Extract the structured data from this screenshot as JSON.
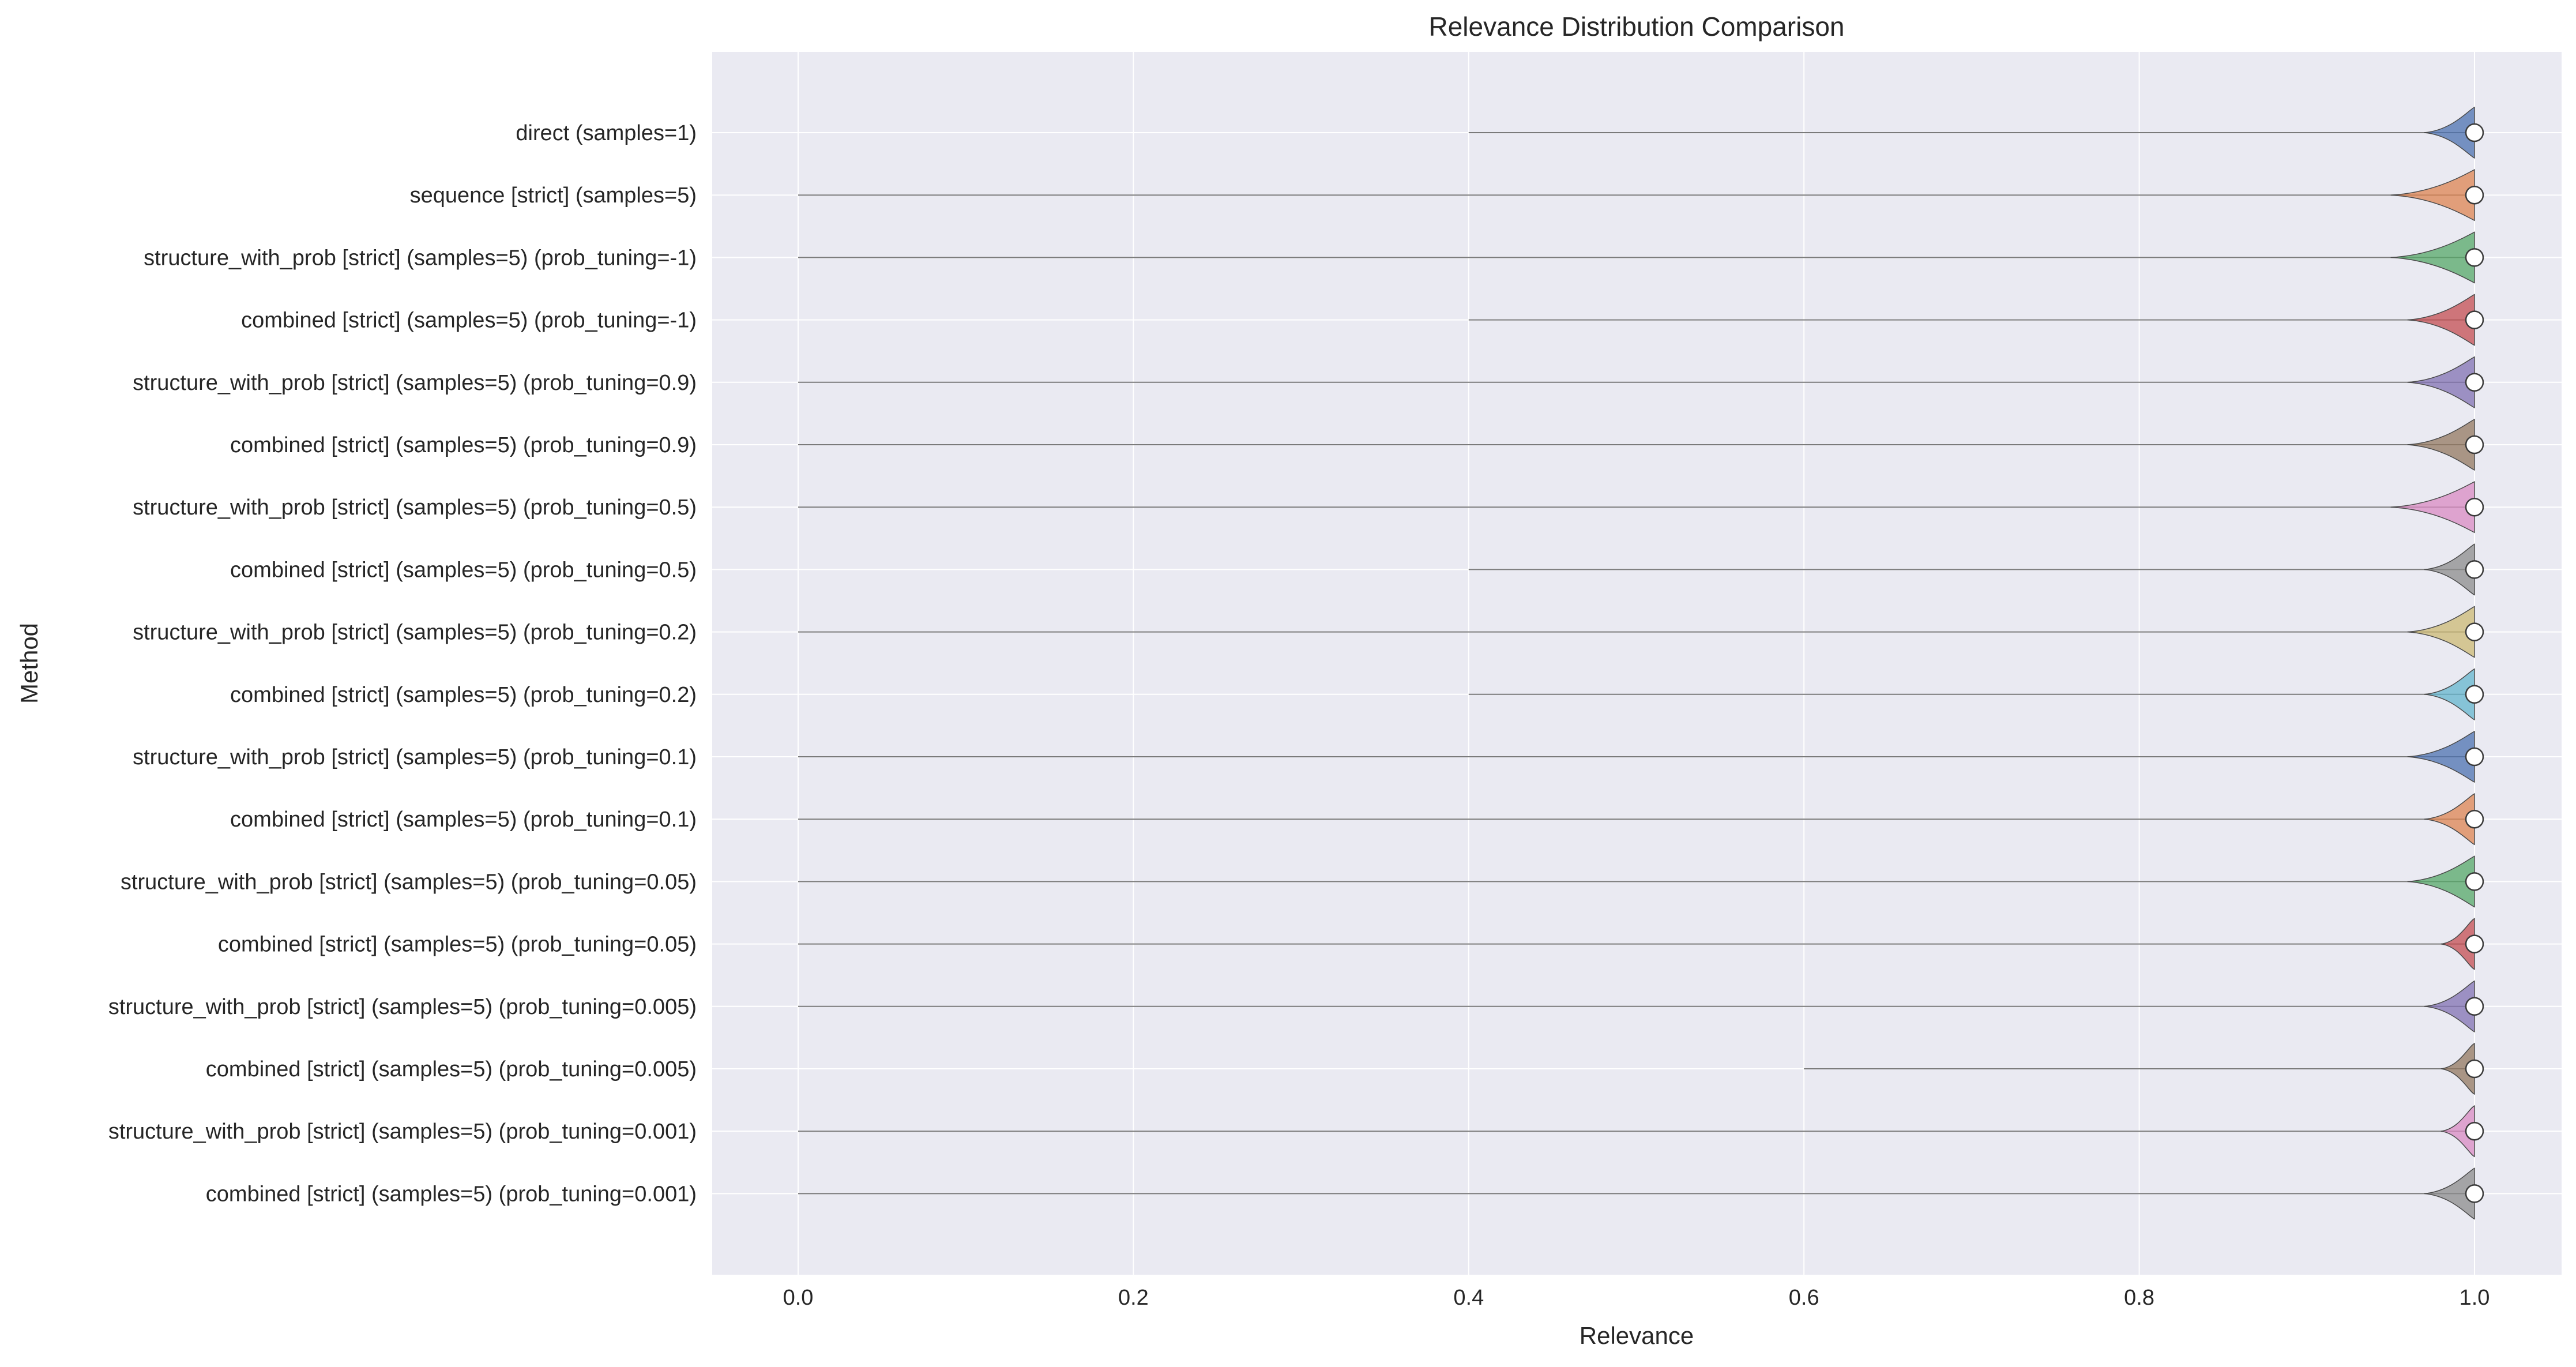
{
  "chart_data": {
    "type": "violin",
    "title": "Relevance Distribution Comparison",
    "xlabel": "Relevance",
    "ylabel": "Method",
    "xlim": [
      -0.08,
      1.05
    ],
    "xticks": [
      "0.0",
      "0.2",
      "0.4",
      "0.6",
      "0.8",
      "1.0"
    ],
    "grid": true,
    "orientation": "horizontal",
    "categories": [
      "direct (samples=1)",
      "sequence [strict] (samples=5)",
      "structure_with_prob [strict] (samples=5) (prob_tuning=-1)",
      "combined [strict] (samples=5) (prob_tuning=-1)",
      "structure_with_prob [strict] (samples=5) (prob_tuning=0.9)",
      "combined [strict] (samples=5) (prob_tuning=0.9)",
      "structure_with_prob [strict] (samples=5) (prob_tuning=0.5)",
      "combined [strict] (samples=5) (prob_tuning=0.5)",
      "structure_with_prob [strict] (samples=5) (prob_tuning=0.2)",
      "combined [strict] (samples=5) (prob_tuning=0.2)",
      "structure_with_prob [strict] (samples=5) (prob_tuning=0.1)",
      "combined [strict] (samples=5) (prob_tuning=0.1)",
      "structure_with_prob [strict] (samples=5) (prob_tuning=0.05)",
      "combined [strict] (samples=5) (prob_tuning=0.05)",
      "structure_with_prob [strict] (samples=5) (prob_tuning=0.005)",
      "combined [strict] (samples=5) (prob_tuning=0.005)",
      "structure_with_prob [strict] (samples=5) (prob_tuning=0.001)",
      "combined [strict] (samples=5) (prob_tuning=0.001)"
    ],
    "series": [
      {
        "min": 0.4,
        "max": 1.0,
        "median": 1.0,
        "violin_start": 0.97,
        "color": "#4c72b0"
      },
      {
        "min": 0.0,
        "max": 1.0,
        "median": 1.0,
        "violin_start": 0.95,
        "color": "#dd8452"
      },
      {
        "min": 0.0,
        "max": 1.0,
        "median": 1.0,
        "violin_start": 0.95,
        "color": "#55a868"
      },
      {
        "min": 0.4,
        "max": 1.0,
        "median": 1.0,
        "violin_start": 0.96,
        "color": "#c44e52"
      },
      {
        "min": 0.0,
        "max": 1.0,
        "median": 1.0,
        "violin_start": 0.96,
        "color": "#8172b3"
      },
      {
        "min": 0.0,
        "max": 1.0,
        "median": 1.0,
        "violin_start": 0.96,
        "color": "#937860"
      },
      {
        "min": 0.0,
        "max": 1.0,
        "median": 1.0,
        "violin_start": 0.95,
        "color": "#da8bc3"
      },
      {
        "min": 0.4,
        "max": 1.0,
        "median": 1.0,
        "violin_start": 0.97,
        "color": "#8c8c8c"
      },
      {
        "min": 0.0,
        "max": 1.0,
        "median": 1.0,
        "violin_start": 0.96,
        "color": "#ccb974"
      },
      {
        "min": 0.4,
        "max": 1.0,
        "median": 1.0,
        "violin_start": 0.97,
        "color": "#64b5cd"
      },
      {
        "min": 0.0,
        "max": 1.0,
        "median": 1.0,
        "violin_start": 0.96,
        "color": "#4c72b0"
      },
      {
        "min": 0.0,
        "max": 1.0,
        "median": 1.0,
        "violin_start": 0.97,
        "color": "#dd8452"
      },
      {
        "min": 0.0,
        "max": 1.0,
        "median": 1.0,
        "violin_start": 0.96,
        "color": "#55a868"
      },
      {
        "min": 0.0,
        "max": 1.0,
        "median": 1.0,
        "violin_start": 0.98,
        "color": "#c44e52"
      },
      {
        "min": 0.0,
        "max": 1.0,
        "median": 1.0,
        "violin_start": 0.97,
        "color": "#8172b3"
      },
      {
        "min": 0.6,
        "max": 1.0,
        "median": 1.0,
        "violin_start": 0.98,
        "color": "#937860"
      },
      {
        "min": 0.0,
        "max": 1.0,
        "median": 1.0,
        "violin_start": 0.98,
        "color": "#da8bc3"
      },
      {
        "min": 0.0,
        "max": 1.0,
        "median": 1.0,
        "violin_start": 0.97,
        "color": "#8c8c8c"
      }
    ]
  }
}
